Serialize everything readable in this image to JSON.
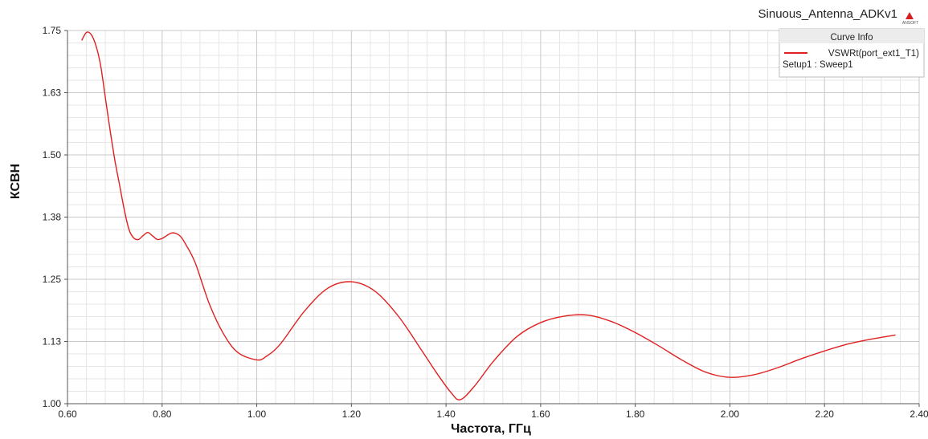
{
  "colors": {
    "curve": "#e02020",
    "grid_major": "#c8c8c8",
    "grid_minor": "#e6e6e6",
    "legend_bg": "#ffffff",
    "legend_header_bg": "#ececec",
    "logo": "#d42020"
  },
  "logo": {
    "text": "ANSOFT",
    "icon": "ansoft-triangle-logo"
  },
  "chart_data": {
    "type": "line",
    "title": "Sinuous_Antenna_ADKv1",
    "xlabel": "Частота, ГГц",
    "ylabel": "КСВН",
    "xlim": [
      0.6,
      2.4
    ],
    "ylim": [
      1.0,
      1.75
    ],
    "x_ticks": [
      "0.60",
      "0.80",
      "1.00",
      "1.20",
      "1.40",
      "1.60",
      "1.80",
      "2.00",
      "2.20",
      "2.40"
    ],
    "y_ticks": [
      "1.00",
      "1.13",
      "1.25",
      "1.38",
      "1.50",
      "1.63",
      "1.75"
    ],
    "grid": true,
    "legend": {
      "header": "Curve Info",
      "placement": "top-right",
      "entries": [
        {
          "label": "VSWRt(port_ext1_T1)",
          "sublabel": "Setup1 : Sweep1"
        }
      ]
    },
    "series": [
      {
        "name": "VSWRt(port_ext1_T1)",
        "x": [
          0.63,
          0.64,
          0.65,
          0.66,
          0.67,
          0.68,
          0.69,
          0.7,
          0.71,
          0.72,
          0.73,
          0.74,
          0.75,
          0.76,
          0.77,
          0.78,
          0.79,
          0.8,
          0.81,
          0.82,
          0.83,
          0.84,
          0.85,
          0.87,
          0.9,
          0.93,
          0.96,
          1.0,
          1.02,
          1.05,
          1.1,
          1.15,
          1.2,
          1.25,
          1.3,
          1.35,
          1.38,
          1.41,
          1.43,
          1.46,
          1.5,
          1.55,
          1.6,
          1.65,
          1.7,
          1.75,
          1.8,
          1.85,
          1.9,
          1.95,
          2.0,
          2.05,
          2.1,
          2.15,
          2.2,
          2.25,
          2.3,
          2.35
        ],
        "y": [
          1.73,
          1.746,
          1.742,
          1.72,
          1.68,
          1.615,
          1.55,
          1.49,
          1.44,
          1.39,
          1.35,
          1.333,
          1.33,
          1.338,
          1.344,
          1.337,
          1.33,
          1.332,
          1.338,
          1.343,
          1.342,
          1.335,
          1.32,
          1.283,
          1.2,
          1.14,
          1.103,
          1.088,
          1.095,
          1.12,
          1.185,
          1.232,
          1.245,
          1.226,
          1.175,
          1.105,
          1.062,
          1.023,
          1.008,
          1.035,
          1.085,
          1.135,
          1.163,
          1.176,
          1.178,
          1.165,
          1.143,
          1.116,
          1.087,
          1.063,
          1.053,
          1.058,
          1.072,
          1.09,
          1.106,
          1.12,
          1.13,
          1.138
        ]
      }
    ]
  }
}
